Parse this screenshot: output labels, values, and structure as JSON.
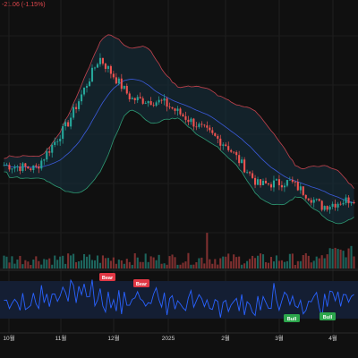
{
  "header": {
    "change_text": "-21.06 (-1.15%)"
  },
  "colors": {
    "background": "#101010",
    "up": "#26a69a",
    "down": "#ef5350",
    "bb_basis": "#3b5bdb",
    "bb_upper": "#c2424d",
    "bb_lower": "#2e9a73",
    "bb_fill": "#16323f",
    "rsi_line": "#2962ff",
    "rsi_band": "#141e33",
    "bear_badge": "#e23744",
    "bull_badge": "#2ca64c"
  },
  "chart_data": {
    "type": "candlestick",
    "indicators": [
      "Bollinger Bands",
      "Volume",
      "RSI divergence"
    ],
    "x_ticks": [
      "10월",
      "11월",
      "12월",
      "2025",
      "2월",
      "3월",
      "4월"
    ],
    "price_panel": {
      "series_trend": [
        {
          "label": "10월",
          "close": 0.3
        },
        {
          "label": "11월",
          "close": 0.28
        },
        {
          "label": "late 11월",
          "close": 0.55
        },
        {
          "label": "12월",
          "close": 0.95
        },
        {
          "label": "late 12월",
          "close": 0.7
        },
        {
          "label": "2025",
          "close": 0.68
        },
        {
          "label": "2월",
          "close": 0.55
        },
        {
          "label": "mid 2월",
          "close": 0.42
        },
        {
          "label": "3월",
          "close": 0.18
        },
        {
          "label": "mid 3월",
          "close": 0.2
        },
        {
          "label": "4월",
          "close": 0.05
        },
        {
          "label": "end",
          "close": 0.1
        }
      ]
    },
    "rsi_panel": {
      "signals": [
        {
          "type": "Bear",
          "near": "late 11월"
        },
        {
          "type": "Bear",
          "near": "12월"
        },
        {
          "type": "Bull",
          "near": "3월"
        },
        {
          "type": "Bull",
          "near": "4월"
        }
      ]
    }
  }
}
